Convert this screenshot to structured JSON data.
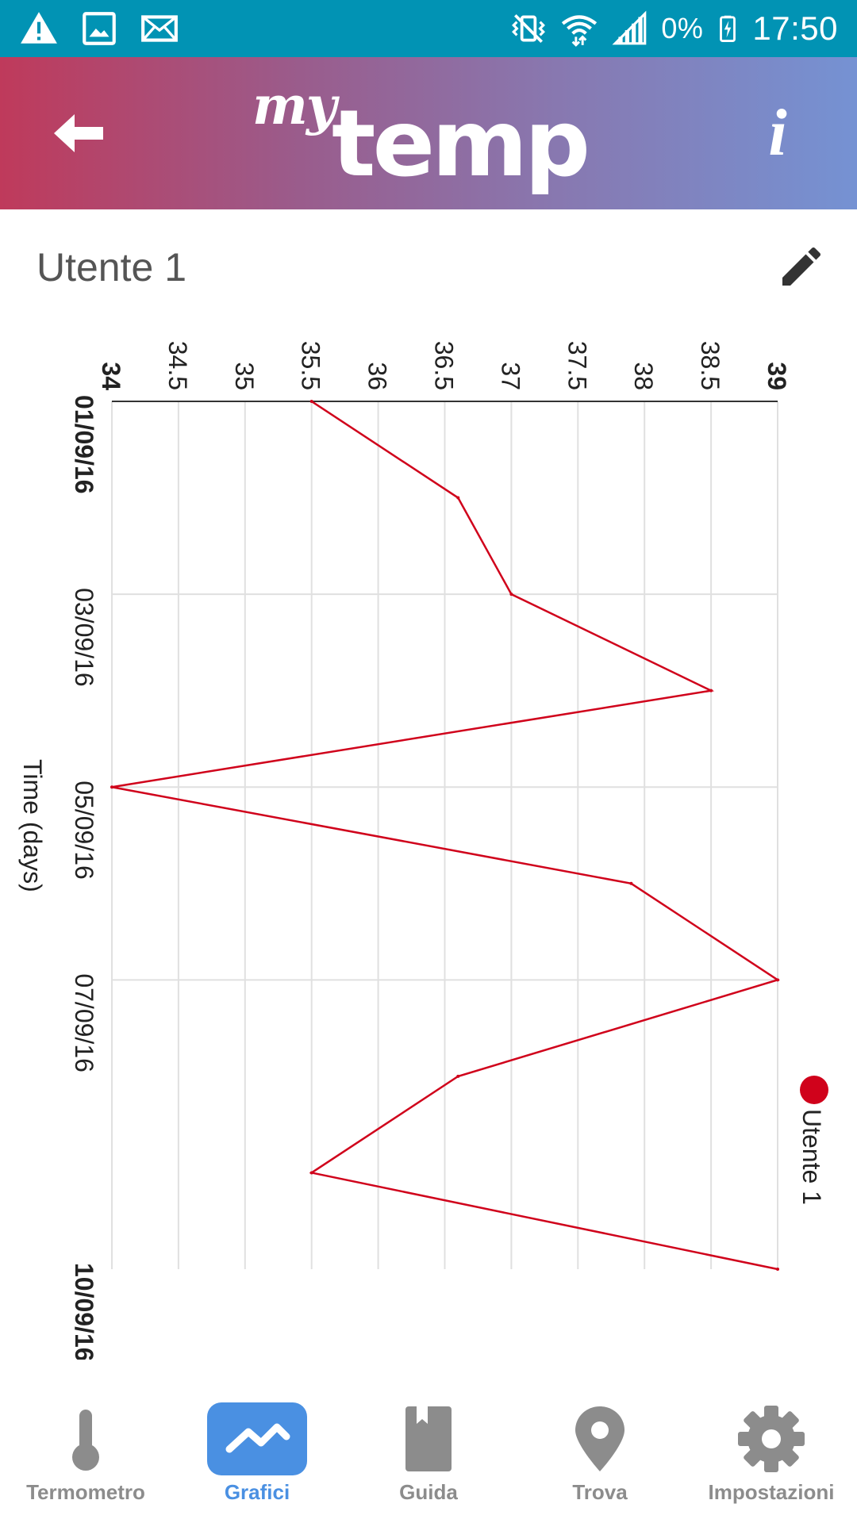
{
  "status_bar": {
    "battery_percent": "0%",
    "time": "17:50",
    "icons": [
      "warning-icon",
      "image-icon",
      "mail-icon",
      "vibrate-icon",
      "wifi-icon",
      "signal-icon",
      "battery-charging-icon"
    ]
  },
  "header": {
    "logo_my": "my",
    "logo_temp": "temp",
    "back_icon": "back-arrow-icon",
    "info_icon": "info-icon",
    "info_glyph": "i",
    "gradient": [
      "#bf3a5b",
      "#7592d3"
    ]
  },
  "user": {
    "name": "Utente 1",
    "edit_icon": "pencil-icon"
  },
  "chart_data": {
    "type": "line",
    "orientation": "rotated-90",
    "xlabel": "Time (days)",
    "ylabel": "",
    "x_tick_labels": [
      "01/09/16",
      "03/09/16",
      "05/09/16",
      "07/09/16",
      "10/09/16"
    ],
    "y_tick_labels": [
      "34",
      "34.5",
      "35",
      "35.5",
      "36",
      "36.5",
      "37",
      "37.5",
      "38",
      "38.5",
      "39"
    ],
    "ylim": [
      34,
      39
    ],
    "x_days": [
      "01/09/16",
      "02/09/16",
      "03/09/16",
      "04/09/16",
      "05/09/16",
      "06/09/16",
      "07/09/16",
      "08/09/16",
      "09/09/16",
      "10/09/16"
    ],
    "series": [
      {
        "name": "Utente 1",
        "color": "#d0021b",
        "values": [
          35.5,
          36.6,
          37.0,
          38.5,
          34.0,
          37.9,
          39.0,
          36.6,
          35.5,
          39.0
        ]
      }
    ],
    "legend": "right",
    "grid": true
  },
  "nav": {
    "items": [
      {
        "label": "Termometro",
        "icon": "thermometer-icon",
        "active": false
      },
      {
        "label": "Grafici",
        "icon": "chart-icon",
        "active": true
      },
      {
        "label": "Guida",
        "icon": "book-icon",
        "active": false
      },
      {
        "label": "Trova",
        "icon": "location-pin-icon",
        "active": false
      },
      {
        "label": "Impostazioni",
        "icon": "settings-gear-icon",
        "active": false
      }
    ]
  },
  "colors": {
    "status_bar": "#0193b4",
    "accent": "#4a90e2",
    "series": "#d0021b",
    "nav_inactive": "#8c8c8c"
  }
}
